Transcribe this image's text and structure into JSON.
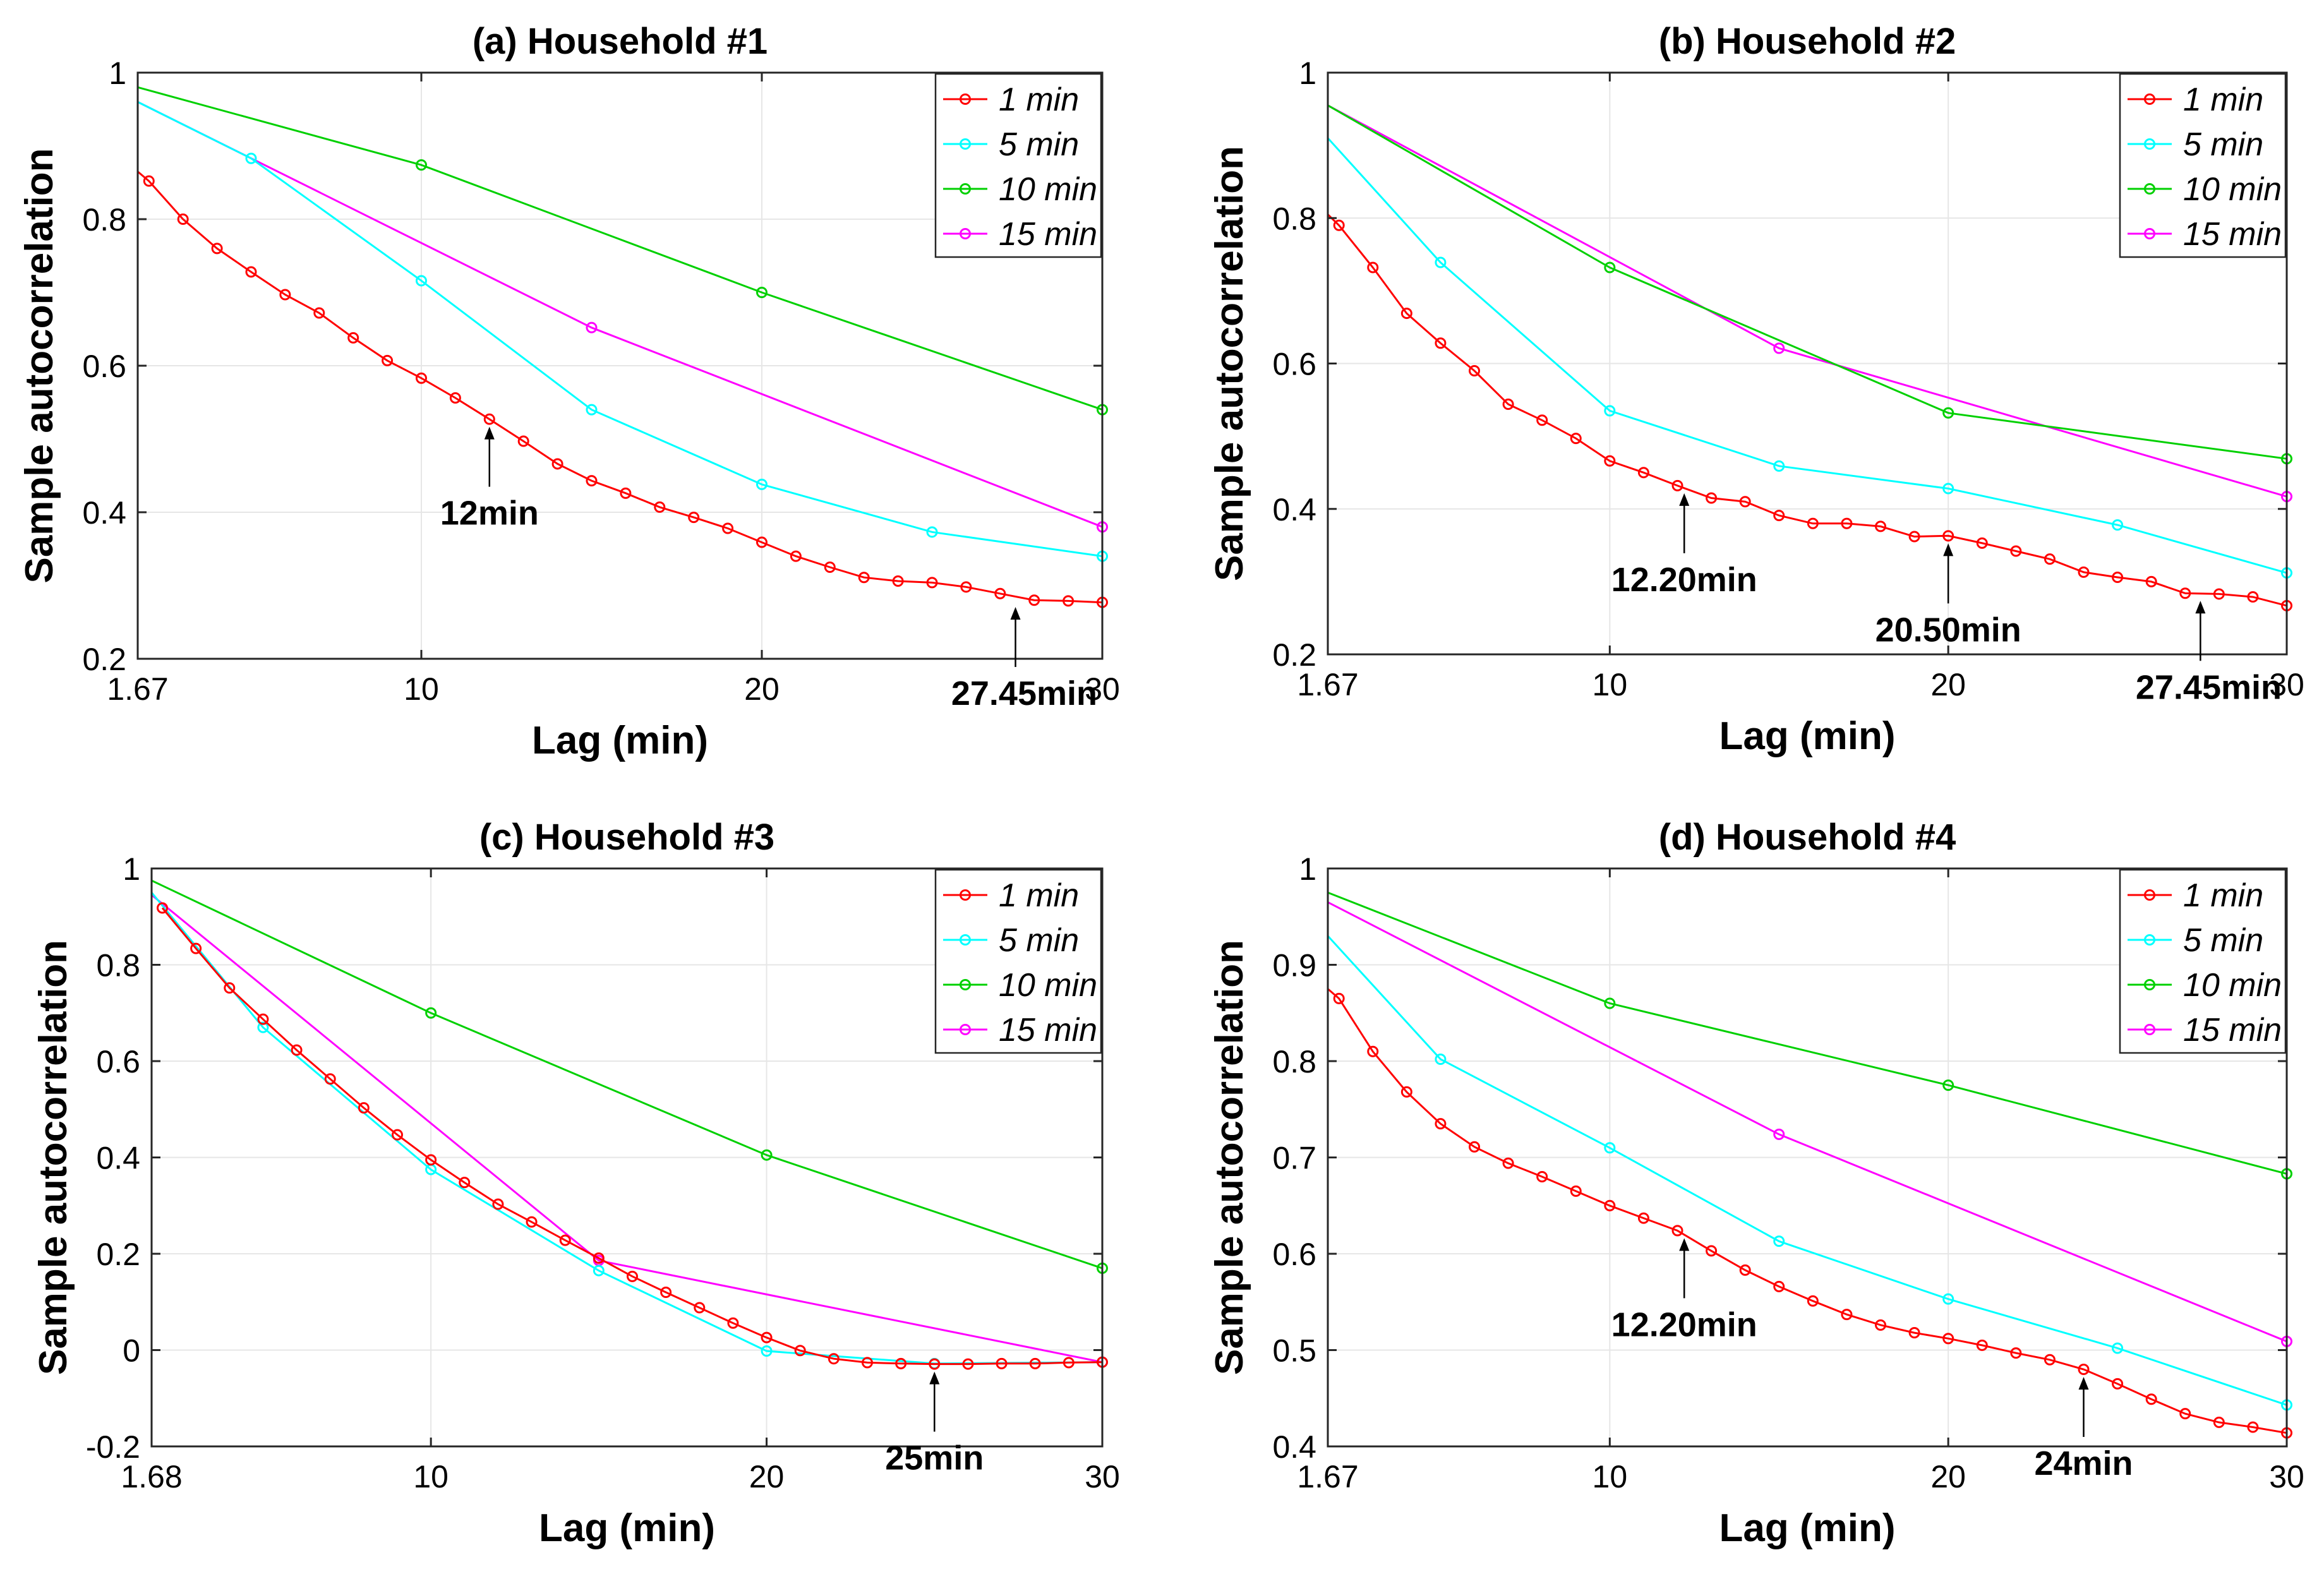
{
  "chart_data": [
    {
      "type": "line",
      "title": "(a) Household #1",
      "xlabel": "Lag (min)",
      "ylabel": "Sample autocorrelation",
      "xlim": [
        1.67,
        30
      ],
      "ylim": [
        0.2,
        1
      ],
      "xticks": [
        1.67,
        10,
        20,
        30
      ],
      "xtick_labels": [
        "1.67",
        "10",
        "20",
        "30"
      ],
      "yticks": [
        0.2,
        0.4,
        0.6,
        0.8,
        1
      ],
      "ytick_labels": [
        "0.2",
        "0.4",
        "0.6",
        "0.8",
        "1"
      ],
      "grid": true,
      "legend_position": "top-right",
      "series": [
        {
          "name": "1 min",
          "color": "#ff0000",
          "x": [
            1.67,
            2,
            3,
            4,
            5,
            6,
            7,
            8,
            9,
            10,
            11,
            12,
            13,
            14,
            15,
            16,
            17,
            18,
            19,
            20,
            21,
            22,
            23,
            24,
            25,
            26,
            27,
            28,
            29,
            30
          ],
          "y": [
            0.865,
            0.852,
            0.8,
            0.76,
            0.728,
            0.697,
            0.672,
            0.638,
            0.607,
            0.583,
            0.556,
            0.527,
            0.497,
            0.466,
            0.443,
            0.426,
            0.407,
            0.393,
            0.378,
            0.359,
            0.34,
            0.325,
            0.311,
            0.306,
            0.304,
            0.298,
            0.289,
            0.28,
            0.279,
            0.277
          ]
        },
        {
          "name": "5 min",
          "color": "#00ffff",
          "x": [
            1.67,
            5,
            10,
            15,
            20,
            25,
            30
          ],
          "y": [
            0.96,
            0.883,
            0.716,
            0.54,
            0.438,
            0.373,
            0.34
          ]
        },
        {
          "name": "10 min",
          "color": "#00d000",
          "x": [
            1.67,
            10,
            20,
            30
          ],
          "y": [
            0.98,
            0.874,
            0.7,
            0.54
          ]
        },
        {
          "name": "15 min",
          "color": "#ff00ff",
          "x": [
            1.67,
            15,
            30
          ],
          "y": [
            0.96,
            0.652,
            0.38
          ]
        }
      ],
      "annotations": [
        {
          "text": "12min",
          "x": 12,
          "y": 0.527
        },
        {
          "text": "27.45min",
          "x": 27.45,
          "y": 0.281
        }
      ]
    },
    {
      "type": "line",
      "title": "(b) Household #2",
      "xlabel": "Lag (min)",
      "ylabel": "Sample autocorrelation",
      "xlim": [
        1.67,
        30
      ],
      "ylim": [
        0.2,
        1
      ],
      "xticks": [
        1.67,
        10,
        20,
        30
      ],
      "xtick_labels": [
        "1.67",
        "10",
        "20",
        "30"
      ],
      "yticks": [
        0.2,
        0.4,
        0.6,
        0.8,
        1
      ],
      "ytick_labels": [
        "0.2",
        "0.4",
        "0.6",
        "0.8",
        "1"
      ],
      "grid": true,
      "legend_position": "top-right",
      "series": [
        {
          "name": "1 min",
          "color": "#ff0000",
          "x": [
            1.67,
            2,
            3,
            4,
            5,
            6,
            7,
            8,
            9,
            10,
            11,
            12,
            13,
            14,
            15,
            16,
            17,
            18,
            19,
            20,
            21,
            22,
            23,
            24,
            25,
            26,
            27,
            28,
            29,
            30
          ],
          "y": [
            0.805,
            0.79,
            0.732,
            0.669,
            0.628,
            0.59,
            0.544,
            0.522,
            0.497,
            0.466,
            0.45,
            0.432,
            0.415,
            0.41,
            0.391,
            0.38,
            0.38,
            0.376,
            0.362,
            0.363,
            0.353,
            0.342,
            0.331,
            0.313,
            0.306,
            0.3,
            0.284,
            0.283,
            0.279,
            0.267
          ]
        },
        {
          "name": "5 min",
          "color": "#00ffff",
          "x": [
            1.67,
            5,
            10,
            15,
            20,
            25,
            30
          ],
          "y": [
            0.91,
            0.739,
            0.535,
            0.459,
            0.428,
            0.378,
            0.312
          ]
        },
        {
          "name": "10 min",
          "color": "#00d000",
          "x": [
            1.67,
            10,
            20,
            30
          ],
          "y": [
            0.955,
            0.732,
            0.532,
            0.469
          ]
        },
        {
          "name": "15 min",
          "color": "#ff00ff",
          "x": [
            1.67,
            15,
            30
          ],
          "y": [
            0.955,
            0.621,
            0.417
          ]
        }
      ],
      "annotations": [
        {
          "text": "12.20min",
          "x": 12.2,
          "y": 0.432
        },
        {
          "text": "20.50min",
          "x": 20,
          "y": 0.363
        },
        {
          "text": "27.45min",
          "x": 27.45,
          "y": 0.284
        }
      ]
    },
    {
      "type": "line",
      "title": "(c) Household #3",
      "xlabel": "Lag (min)",
      "ylabel": "Sample autocorrelation",
      "xlim": [
        1.68,
        30
      ],
      "ylim": [
        -0.2,
        1
      ],
      "xticks": [
        1.68,
        10,
        20,
        30
      ],
      "xtick_labels": [
        "1.68",
        "10",
        "20",
        "30"
      ],
      "yticks": [
        -0.2,
        0,
        0.2,
        0.4,
        0.6,
        0.8,
        1
      ],
      "ytick_labels": [
        "-0.2",
        "0",
        "0.2",
        "0.4",
        "0.6",
        "0.8",
        "1"
      ],
      "grid": true,
      "legend_position": "top-right",
      "series": [
        {
          "name": "1 min",
          "color": "#ff0000",
          "x": [
            2,
            3,
            4,
            5,
            6,
            7,
            8,
            9,
            10,
            11,
            12,
            13,
            14,
            15,
            16,
            17,
            18,
            19,
            20,
            21,
            22,
            23,
            24,
            25,
            26,
            27,
            28,
            29,
            30
          ],
          "y": [
            0.918,
            0.834,
            0.752,
            0.687,
            0.623,
            0.563,
            0.503,
            0.447,
            0.395,
            0.348,
            0.303,
            0.266,
            0.228,
            0.191,
            0.153,
            0.12,
            0.088,
            0.056,
            0.026,
            -0.001,
            -0.018,
            -0.026,
            -0.028,
            -0.029,
            -0.029,
            -0.028,
            -0.028,
            -0.026,
            -0.025
          ]
        },
        {
          "name": "5 min",
          "color": "#00ffff",
          "x": [
            1.68,
            5,
            10,
            15,
            20,
            25,
            30
          ],
          "y": [
            0.95,
            0.67,
            0.375,
            0.165,
            -0.002,
            -0.028,
            -0.025
          ]
        },
        {
          "name": "10 min",
          "color": "#00d000",
          "x": [
            1.68,
            10,
            20,
            30
          ],
          "y": [
            0.975,
            0.7,
            0.405,
            0.17
          ]
        },
        {
          "name": "15 min",
          "color": "#ff00ff",
          "x": [
            1.68,
            15,
            30
          ],
          "y": [
            0.945,
            0.186,
            -0.025
          ]
        }
      ],
      "annotations": [
        {
          "text": "25min",
          "x": 25,
          "y": -0.029
        }
      ]
    },
    {
      "type": "line",
      "title": "(d) Household #4",
      "xlabel": "Lag (min)",
      "ylabel": "Sample autocorrelation",
      "xlim": [
        1.67,
        30
      ],
      "ylim": [
        0.4,
        1
      ],
      "xticks": [
        1.67,
        10,
        20,
        30
      ],
      "xtick_labels": [
        "1.67",
        "10",
        "20",
        "30"
      ],
      "yticks": [
        0.4,
        0.5,
        0.6,
        0.7,
        0.8,
        0.9,
        1
      ],
      "ytick_labels": [
        "0.4",
        "0.5",
        "0.6",
        "0.7",
        "0.8",
        "0.9",
        "1"
      ],
      "grid": true,
      "legend_position": "top-right",
      "series": [
        {
          "name": "1 min",
          "color": "#ff0000",
          "x": [
            1.67,
            2,
            3,
            4,
            5,
            6,
            7,
            8,
            9,
            10,
            11,
            12,
            13,
            14,
            15,
            16,
            17,
            18,
            19,
            20,
            21,
            22,
            23,
            24,
            25,
            26,
            27,
            28,
            29,
            30
          ],
          "y": [
            0.875,
            0.865,
            0.81,
            0.768,
            0.735,
            0.711,
            0.694,
            0.68,
            0.665,
            0.65,
            0.637,
            0.624,
            0.603,
            0.583,
            0.566,
            0.551,
            0.537,
            0.526,
            0.518,
            0.512,
            0.505,
            0.497,
            0.49,
            0.48,
            0.465,
            0.449,
            0.434,
            0.425,
            0.42,
            0.414
          ]
        },
        {
          "name": "5 min",
          "color": "#00ffff",
          "x": [
            1.67,
            5,
            10,
            15,
            20,
            25,
            30
          ],
          "y": [
            0.93,
            0.802,
            0.71,
            0.613,
            0.553,
            0.502,
            0.443
          ]
        },
        {
          "name": "10 min",
          "color": "#00d000",
          "x": [
            1.67,
            10,
            20,
            30
          ],
          "y": [
            0.975,
            0.86,
            0.775,
            0.683
          ]
        },
        {
          "name": "15 min",
          "color": "#ff00ff",
          "x": [
            1.67,
            15,
            30
          ],
          "y": [
            0.965,
            0.724,
            0.509
          ]
        }
      ],
      "annotations": [
        {
          "text": "12.20min",
          "x": 12.2,
          "y": 0.624
        },
        {
          "text": "24min",
          "x": 24,
          "y": 0.48
        }
      ]
    }
  ]
}
